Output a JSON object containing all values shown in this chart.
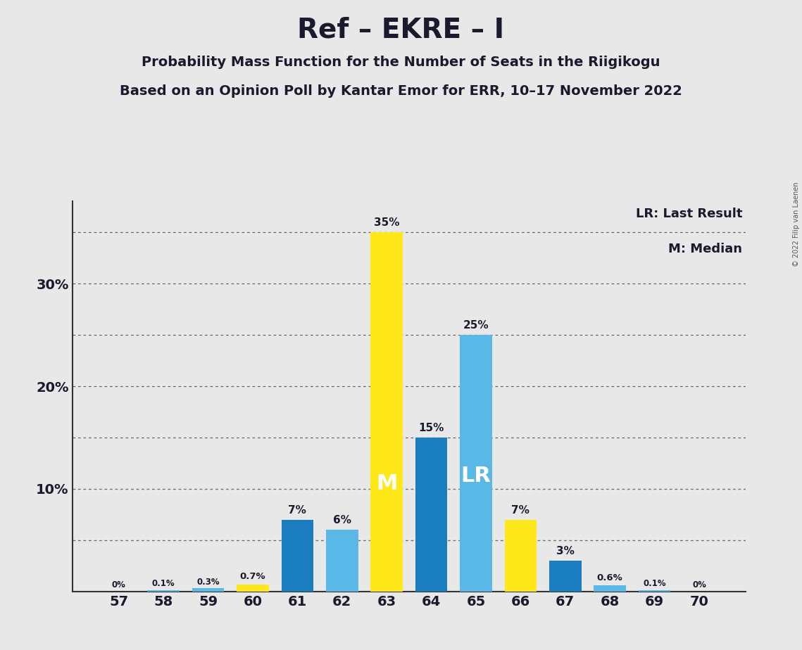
{
  "title": "Ref – EKRE – I",
  "subtitle1": "Probability Mass Function for the Number of Seats in the Riigikogu",
  "subtitle2": "Based on an Opinion Poll by Kantar Emor for ERR, 10–17 November 2022",
  "copyright": "© 2022 Filip van Laenen",
  "seats": [
    57,
    58,
    59,
    60,
    61,
    62,
    63,
    64,
    65,
    66,
    67,
    68,
    69,
    70
  ],
  "values": [
    0.0,
    0.1,
    0.3,
    0.7,
    7.0,
    6.0,
    35.0,
    15.0,
    25.0,
    7.0,
    3.0,
    0.6,
    0.1,
    0.0
  ],
  "labels": [
    "0%",
    "0.1%",
    "0.3%",
    "0.7%",
    "7%",
    "6%",
    "35%",
    "15%",
    "25%",
    "7%",
    "3%",
    "0.6%",
    "0.1%",
    "0%"
  ],
  "colors": [
    "#1A7DC0",
    "#59B8E6",
    "#59B8E6",
    "#FFE81A",
    "#1A7DC0",
    "#59B8E6",
    "#FFE81A",
    "#1A7DC0",
    "#59B8E6",
    "#FFE81A",
    "#1A7DC0",
    "#59B8E6",
    "#59B8E6",
    "#59B8E6"
  ],
  "median_seat": 63,
  "lr_seat": 65,
  "legend_lr": "LR: Last Result",
  "legend_m": "M: Median",
  "ylim": [
    0,
    38
  ],
  "yticks": [
    0,
    10,
    20,
    30
  ],
  "ytick_labels": [
    "",
    "10%",
    "20%",
    "30%"
  ],
  "grid_lines": [
    5,
    10,
    15,
    20,
    25,
    30,
    35
  ],
  "background_color": "#E8E8E8",
  "plot_bg_color": "#E8E8E8",
  "grid_color": "#666666",
  "title_color": "#1A1A2E",
  "white": "#FFFFFF"
}
